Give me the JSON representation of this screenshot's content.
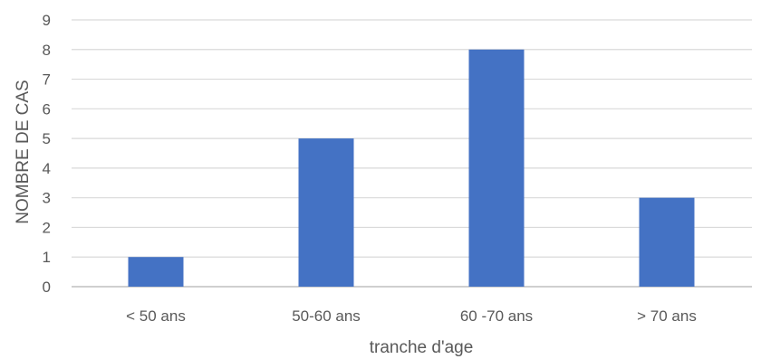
{
  "chart_data": {
    "type": "bar",
    "title": "",
    "xlabel": "tranche d'age",
    "ylabel": "NOMBRE DE CAS",
    "categories": [
      "< 50 ans",
      "50-60 ans",
      "60 -70 ans",
      "> 70 ans"
    ],
    "series": [
      {
        "values": [
          1,
          5,
          8,
          3
        ],
        "color": "#4472c4"
      }
    ],
    "ylim": [
      0,
      9
    ],
    "yticks": [
      "0",
      "1",
      "2",
      "3",
      "4",
      "5",
      "6",
      "7",
      "8",
      "9"
    ],
    "grid": true,
    "legend": "none"
  }
}
